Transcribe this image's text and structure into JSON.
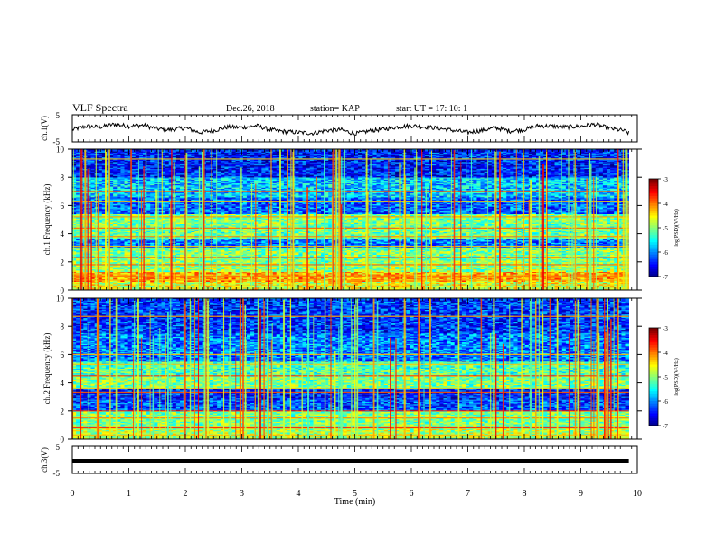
{
  "header": {
    "title": "VLF Spectra",
    "date": "Dec.26, 2018",
    "station": "station= KAP",
    "start": "start  UT  =   17: 10: 1"
  },
  "chart_data": [
    {
      "type": "line",
      "panel": "ch1-waveform",
      "ylabel": "ch.1(V)",
      "ylim": [
        -5,
        5
      ],
      "yticks": [
        "5",
        "-5"
      ],
      "xlim": [
        0,
        10
      ],
      "x": [
        0,
        0.25,
        0.5,
        0.75,
        1,
        1.25,
        1.5,
        1.75,
        2,
        2.25,
        2.5,
        2.75,
        3,
        3.25,
        3.5,
        3.75,
        4,
        4.25,
        4.5,
        4.75,
        5,
        5.25,
        5.5,
        5.75,
        6,
        6.25,
        6.5,
        6.75,
        7,
        7.25,
        7.5,
        7.75,
        8,
        8.25,
        8.5,
        8.75,
        9,
        9.25,
        9.5,
        9.75,
        9.85
      ],
      "values": [
        -0.5,
        0.8,
        0.5,
        1.5,
        0.8,
        1.2,
        -0.2,
        -0.5,
        0.2,
        -1.5,
        -0.8,
        0.5,
        0.3,
        1.0,
        -0.5,
        -1.2,
        -1.5,
        -1.8,
        -0.8,
        -0.5,
        -2.0,
        -1.0,
        -0.3,
        0.5,
        1.0,
        0.5,
        0.0,
        -0.8,
        -1.5,
        -0.8,
        0.2,
        -1.0,
        -0.5,
        1.0,
        0.8,
        0.5,
        0.8,
        1.5,
        0.0,
        -0.8,
        -1.8
      ],
      "color": "#000000"
    },
    {
      "type": "heatmap",
      "panel": "ch1-spectrogram",
      "ylabel": "ch.1 Frequency  (kHz)",
      "ylim": [
        0,
        10
      ],
      "yticks": [
        "0",
        "2",
        "4",
        "6",
        "8",
        "10"
      ],
      "xlim": [
        0,
        9.85
      ],
      "colorbar": {
        "label": "log(PSD)(V²/Hz)",
        "range": [
          -7,
          -3
        ],
        "ticks": [
          "-3",
          "-4",
          "-5",
          "-6",
          "-7"
        ]
      },
      "bands": [
        {
          "f0": 0.0,
          "f1": 0.6,
          "level": -4.6
        },
        {
          "f0": 0.6,
          "f1": 1.3,
          "level": -4.2
        },
        {
          "f0": 1.3,
          "f1": 2.0,
          "level": -4.9
        },
        {
          "f0": 2.0,
          "f1": 3.0,
          "level": -5.0
        },
        {
          "f0": 3.0,
          "f1": 3.6,
          "level": -6.0
        },
        {
          "f0": 3.6,
          "f1": 4.6,
          "level": -5.1
        },
        {
          "f0": 4.6,
          "f1": 5.4,
          "level": -5.0
        },
        {
          "f0": 5.4,
          "f1": 6.6,
          "level": -6.1
        },
        {
          "f0": 6.6,
          "f1": 8.0,
          "level": -5.7
        },
        {
          "f0": 8.0,
          "f1": 10.0,
          "level": -6.4
        }
      ],
      "lines_khz": [
        0.3,
        0.7,
        1.0,
        1.8,
        2.3,
        3.1,
        3.8,
        4.4,
        5.2,
        6.3,
        7.0,
        9.3
      ]
    },
    {
      "type": "heatmap",
      "panel": "ch2-spectrogram",
      "ylabel": "ch.2 Frequency  (kHz)",
      "ylim": [
        0,
        10
      ],
      "yticks": [
        "0",
        "2",
        "4",
        "6",
        "8",
        "10"
      ],
      "xlim": [
        0,
        9.85
      ],
      "colorbar": {
        "label": "log(PSD)(V²/Hz)",
        "range": [
          -7,
          -3
        ],
        "ticks": [
          "-3",
          "-4",
          "-5",
          "-6",
          "-7"
        ]
      },
      "bands": [
        {
          "f0": 0.0,
          "f1": 0.8,
          "level": -4.8
        },
        {
          "f0": 0.8,
          "f1": 2.0,
          "level": -5.0
        },
        {
          "f0": 2.0,
          "f1": 2.8,
          "level": -6.2
        },
        {
          "f0": 2.8,
          "f1": 3.6,
          "level": -6.4
        },
        {
          "f0": 3.6,
          "f1": 4.5,
          "level": -5.0
        },
        {
          "f0": 4.5,
          "f1": 5.5,
          "level": -5.2
        },
        {
          "f0": 5.5,
          "f1": 7.5,
          "level": -6.0
        },
        {
          "f0": 7.5,
          "f1": 10.0,
          "level": -6.3
        }
      ],
      "lines_khz": [
        0.3,
        0.8,
        1.5,
        2.0,
        3.3,
        3.6,
        4.5,
        5.3,
        6.0,
        8.7
      ]
    },
    {
      "type": "line",
      "panel": "ch3-waveform",
      "ylabel": "ch.3(V)",
      "ylim": [
        -5,
        5
      ],
      "yticks": [
        "5",
        "-5"
      ],
      "xlim": [
        0,
        10
      ],
      "x": [
        0,
        9.85
      ],
      "values": [
        0,
        0
      ],
      "color": "#000000"
    }
  ],
  "xaxis": {
    "label": "Time  (min)",
    "ticks": [
      "0",
      "1",
      "2",
      "3",
      "4",
      "5",
      "6",
      "7",
      "8",
      "9",
      "10"
    ],
    "range": [
      0,
      10
    ]
  }
}
